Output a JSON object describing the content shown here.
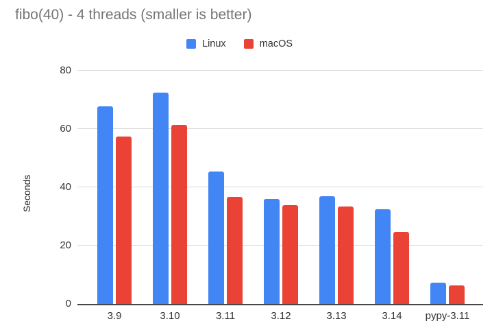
{
  "chart_data": {
    "type": "bar",
    "title": "fibo(40) - 4 threads (smaller is better)",
    "ylabel": "Seconds",
    "xlabel": "",
    "categories": [
      "3.9",
      "3.10",
      "3.11",
      "3.12",
      "3.13",
      "3.14",
      "pypy-3.11"
    ],
    "series": [
      {
        "name": "Linux",
        "color": "#4285F4",
        "values": [
          67.7,
          72.4,
          45.4,
          36.0,
          37.0,
          32.4,
          7.2
        ]
      },
      {
        "name": "macOS",
        "color": "#EA4335",
        "values": [
          57.3,
          61.5,
          36.8,
          33.8,
          33.3,
          24.8,
          6.3
        ]
      }
    ],
    "ylim": [
      0,
      80
    ],
    "yticks": [
      0,
      20,
      40,
      60,
      80
    ],
    "grid": true,
    "legend_position": "top",
    "colors": {
      "gridline": "#d9d9d9",
      "axis_line": "#474747",
      "title_text": "#757575",
      "tick_text": "#333333"
    }
  }
}
